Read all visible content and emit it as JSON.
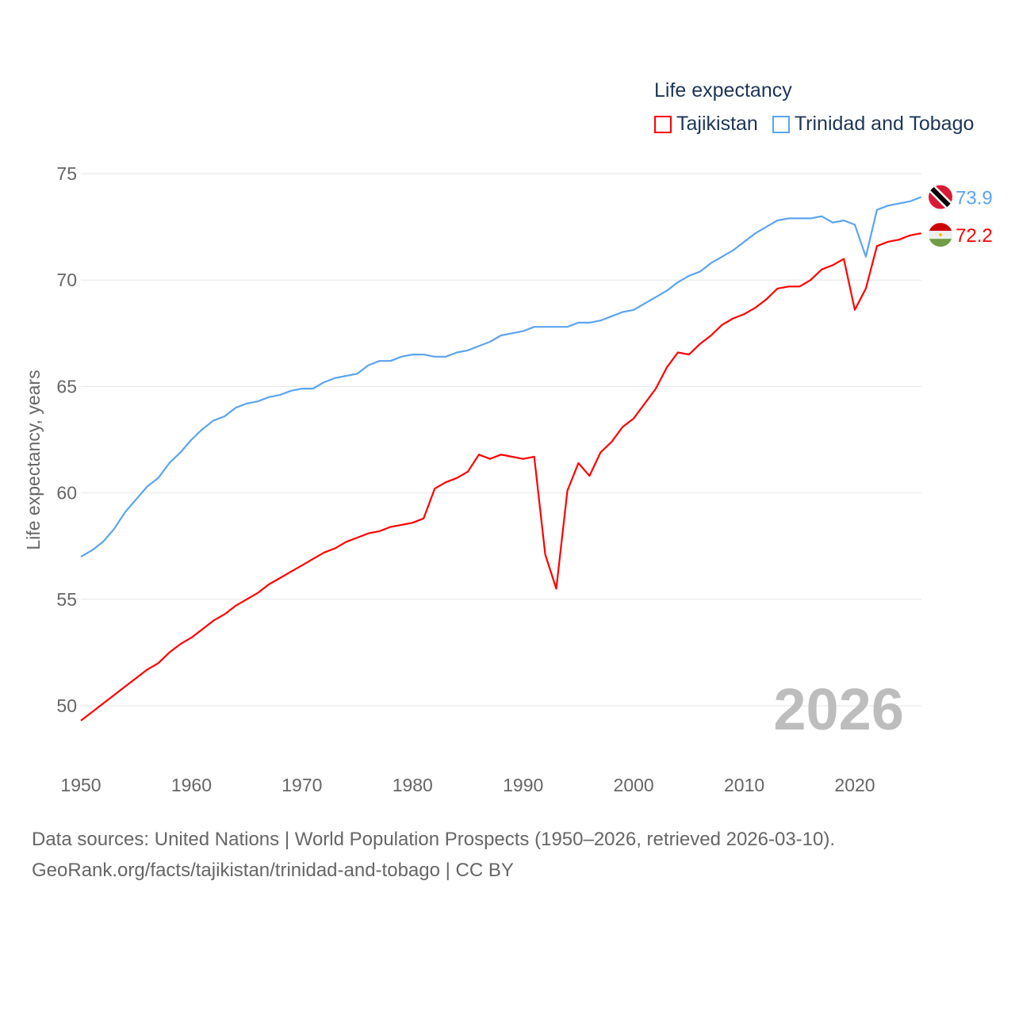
{
  "chart_data": {
    "type": "line",
    "title": "Life expectancy",
    "ylabel": "Life expectancy, years",
    "xlabel": "",
    "xlim": [
      1950,
      2026
    ],
    "ylim": [
      47.5,
      76
    ],
    "x_ticks": [
      "1950",
      "1960",
      "1970",
      "1980",
      "1990",
      "2000",
      "2010",
      "2020"
    ],
    "y_ticks": [
      "50",
      "55",
      "60",
      "65",
      "70",
      "75"
    ],
    "grid": true,
    "legend_placement": "top-right",
    "year_label": "2026",
    "series": [
      {
        "name": "Tajikistan",
        "color": "#ff0000",
        "end_label": "72.2",
        "values": [
          49.3,
          49.7,
          50.1,
          50.5,
          50.9,
          51.3,
          51.7,
          52.0,
          52.5,
          52.9,
          53.2,
          53.6,
          54.0,
          54.3,
          54.7,
          55.0,
          55.3,
          55.7,
          56.0,
          56.3,
          56.6,
          56.9,
          57.2,
          57.4,
          57.7,
          57.9,
          58.1,
          58.2,
          58.4,
          58.5,
          58.6,
          58.8,
          60.2,
          60.5,
          60.7,
          61.0,
          61.8,
          61.6,
          61.8,
          61.7,
          61.6,
          61.7,
          57.1,
          55.5,
          60.1,
          61.4,
          60.8,
          61.9,
          62.4,
          63.1,
          63.5,
          64.2,
          64.9,
          65.9,
          66.6,
          66.5,
          67.0,
          67.4,
          67.9,
          68.2,
          68.4,
          68.7,
          69.1,
          69.6,
          69.7,
          69.7,
          70.0,
          70.5,
          70.7,
          71.0,
          68.6,
          69.6,
          71.6,
          71.8,
          71.9,
          72.1,
          72.2
        ]
      },
      {
        "name": "Trinidad and Tobago",
        "color": "#5ba4f0",
        "end_label": "73.9",
        "values": [
          57.0,
          57.3,
          57.7,
          58.3,
          59.1,
          59.7,
          60.3,
          60.7,
          61.4,
          61.9,
          62.5,
          63.0,
          63.4,
          63.6,
          64.0,
          64.2,
          64.3,
          64.5,
          64.6,
          64.8,
          64.9,
          64.9,
          65.2,
          65.4,
          65.5,
          65.6,
          66.0,
          66.2,
          66.2,
          66.4,
          66.5,
          66.5,
          66.4,
          66.4,
          66.6,
          66.7,
          66.9,
          67.1,
          67.4,
          67.5,
          67.6,
          67.8,
          67.8,
          67.8,
          67.8,
          68.0,
          68.0,
          68.1,
          68.3,
          68.5,
          68.6,
          68.9,
          69.2,
          69.5,
          69.9,
          70.2,
          70.4,
          70.8,
          71.1,
          71.4,
          71.8,
          72.2,
          72.5,
          72.8,
          72.9,
          72.9,
          72.9,
          73.0,
          72.7,
          72.8,
          72.6,
          71.1,
          73.3,
          73.5,
          73.6,
          73.7,
          73.9
        ]
      }
    ]
  },
  "footer": {
    "line1": "Data sources: United Nations | World Population Prospects (1950–2026, retrieved 2026-03-10).",
    "line2": "GeoRank.org/facts/tajikistan/trinidad-and-tobago | CC BY"
  }
}
